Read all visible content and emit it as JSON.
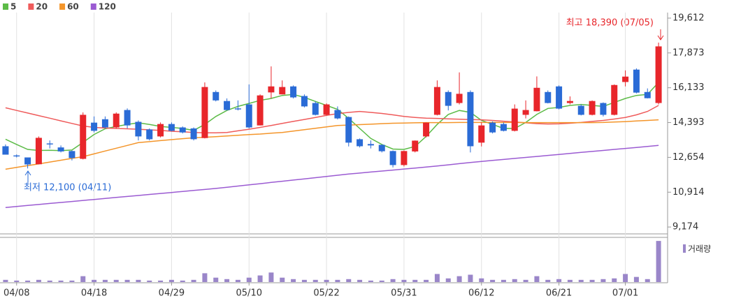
{
  "chart_data": {
    "type": "candlestick",
    "categories": [
      null,
      "04/08",
      null,
      null,
      null,
      null,
      null,
      null,
      "04/18",
      null,
      null,
      null,
      null,
      null,
      null,
      "04/29",
      null,
      null,
      null,
      null,
      null,
      null,
      "05/10",
      null,
      null,
      null,
      null,
      null,
      null,
      "05/22",
      null,
      null,
      null,
      null,
      null,
      null,
      "05/31",
      null,
      null,
      null,
      null,
      null,
      null,
      "06/12",
      null,
      null,
      null,
      null,
      null,
      null,
      "06/21",
      null,
      null,
      null,
      null,
      null,
      "07/01",
      null,
      null,
      null
    ],
    "open": [
      13210,
      12750,
      12650,
      12310,
      13350,
      13150,
      12970,
      12580,
      14390,
      14560,
      14150,
      15020,
      14430,
      14050,
      13700,
      14320,
      14150,
      14100,
      13620,
      15920,
      15470,
      15100,
      15300,
      14250,
      15900,
      15800,
      16200,
      15720,
      15370,
      14780,
      15020,
      14670,
      13560,
      13320,
      13280,
      12970,
      12270,
      12950,
      13700,
      14780,
      15920,
      15370,
      15920,
      13390,
      14390,
      14320,
      13980,
      14780,
      14960,
      15920,
      16200,
      15370,
      15230,
      14780,
      15370,
      14780,
      16420,
      17040,
      15920,
      15370
    ],
    "high": [
      13300,
      12800,
      12650,
      13700,
      13500,
      13250,
      13000,
      14900,
      14700,
      14700,
      14900,
      15100,
      14500,
      14100,
      14400,
      14400,
      14200,
      14150,
      16400,
      16000,
      15600,
      15500,
      16300,
      15800,
      17200,
      16500,
      16250,
      15800,
      15450,
      15350,
      15200,
      14700,
      13600,
      13500,
      13300,
      13000,
      13000,
      13500,
      14400,
      16500,
      16000,
      16900,
      16000,
      14400,
      14450,
      14400,
      15300,
      15500,
      16700,
      16000,
      16250,
      15700,
      15300,
      15500,
      15400,
      16300,
      17000,
      17100,
      16100,
      18390
    ],
    "low": [
      12790,
      12650,
      12100,
      12300,
      13100,
      12900,
      12500,
      12550,
      13900,
      14100,
      14100,
      14100,
      13500,
      13500,
      13650,
      13950,
      13850,
      13500,
      13600,
      15450,
      15000,
      15000,
      14100,
      14250,
      15600,
      15800,
      15600,
      15150,
      14750,
      14750,
      14550,
      13200,
      13150,
      13100,
      12900,
      12150,
      12200,
      12900,
      13650,
      14750,
      15000,
      15300,
      12900,
      13200,
      13850,
      13950,
      13950,
      14600,
      14950,
      15350,
      15050,
      15300,
      14750,
      14750,
      14700,
      14750,
      16200,
      15850,
      15600,
      15300
    ],
    "close": [
      12790,
      12700,
      12300,
      13630,
      13300,
      12950,
      12620,
      14780,
      13980,
      14150,
      14840,
      14250,
      13700,
      13560,
      14320,
      13980,
      13900,
      13560,
      16170,
      15500,
      15020,
      15050,
      14150,
      15750,
      16200,
      16170,
      15650,
      15200,
      14780,
      15300,
      14600,
      13390,
      13210,
      13250,
      12960,
      12270,
      12970,
      13490,
      14390,
      16170,
      15230,
      15830,
      13210,
      14250,
      13900,
      13980,
      15090,
      15020,
      16130,
      15370,
      15090,
      15470,
      14780,
      15470,
      14780,
      16270,
      16690,
      15890,
      15610,
      18200
    ],
    "up_color": "#e8262b",
    "down_color": "#2a6bd6",
    "ylim": [
      8830,
      19890
    ],
    "yticks": [
      {
        "value": 19612,
        "label": "19,612"
      },
      {
        "value": 17873,
        "label": "17,873"
      },
      {
        "value": 16133,
        "label": "16,133"
      },
      {
        "value": 14393,
        "label": "14,393"
      },
      {
        "value": 12654,
        "label": "12,654"
      },
      {
        "value": 10914,
        "label": "10,914"
      },
      {
        "value": 9174,
        "label": "9,174"
      }
    ],
    "grid": true,
    "ma_series": [
      {
        "name": "5",
        "color": "#5cbb47",
        "values": [
          13560,
          13300,
          13050,
          13000,
          13010,
          12990,
          13020,
          13400,
          13800,
          14080,
          14200,
          14300,
          14380,
          14300,
          14200,
          14150,
          14100,
          14000,
          14300,
          14700,
          15000,
          15200,
          15350,
          15500,
          15600,
          15750,
          15800,
          15650,
          15450,
          15250,
          15050,
          14600,
          14100,
          13600,
          13300,
          13070,
          13050,
          13200,
          13700,
          14300,
          14800,
          15000,
          14900,
          14500,
          14300,
          14100,
          14100,
          14400,
          14800,
          15100,
          15150,
          15250,
          15300,
          15250,
          15200,
          15400,
          15600,
          15750,
          15800,
          16400
        ]
      },
      {
        "name": "20",
        "color": "#ef5b5b",
        "values": [
          15130,
          15000,
          14870,
          14740,
          14610,
          14480,
          14350,
          14220,
          14150,
          14120,
          14100,
          14080,
          14060,
          14030,
          14000,
          13960,
          13930,
          13900,
          13880,
          13880,
          13900,
          13980,
          14060,
          14150,
          14250,
          14350,
          14450,
          14550,
          14650,
          14750,
          14840,
          14900,
          14950,
          14900,
          14850,
          14780,
          14700,
          14650,
          14610,
          14600,
          14580,
          14560,
          14540,
          14530,
          14500,
          14460,
          14420,
          14380,
          14340,
          14320,
          14330,
          14360,
          14400,
          14450,
          14500,
          14570,
          14650,
          14780,
          14950,
          15250
        ]
      },
      {
        "name": "60",
        "color": "#f4952a",
        "values": [
          12060,
          12150,
          12240,
          12330,
          12420,
          12510,
          12600,
          12690,
          12830,
          12970,
          13110,
          13250,
          13390,
          13440,
          13490,
          13540,
          13590,
          13630,
          13660,
          13690,
          13720,
          13760,
          13790,
          13820,
          13860,
          13900,
          13970,
          14040,
          14110,
          14180,
          14250,
          14270,
          14290,
          14310,
          14340,
          14360,
          14370,
          14380,
          14390,
          14390,
          14390,
          14400,
          14400,
          14400,
          14400,
          14400,
          14400,
          14390,
          14390,
          14390,
          14390,
          14390,
          14390,
          14390,
          14400,
          14420,
          14440,
          14470,
          14500,
          14530
        ]
      },
      {
        "name": "120",
        "color": "#9b5bd2",
        "values": [
          10150,
          10200,
          10250,
          10300,
          10350,
          10400,
          10450,
          10500,
          10550,
          10600,
          10650,
          10700,
          10750,
          10800,
          10850,
          10900,
          10950,
          11000,
          11050,
          11100,
          11160,
          11220,
          11280,
          11340,
          11400,
          11460,
          11520,
          11580,
          11640,
          11700,
          11760,
          11820,
          11870,
          11920,
          11970,
          12020,
          12070,
          12120,
          12170,
          12220,
          12280,
          12340,
          12400,
          12450,
          12500,
          12550,
          12600,
          12650,
          12700,
          12750,
          12800,
          12850,
          12900,
          12950,
          13000,
          13050,
          13100,
          13150,
          13200,
          13250
        ]
      }
    ],
    "volume": {
      "name": "거래량",
      "color": "#9a86c9",
      "values": [
        3,
        2,
        2,
        3,
        2,
        2,
        2,
        8,
        3,
        3,
        3,
        3,
        3,
        2,
        2,
        3,
        2,
        3,
        12,
        6,
        4,
        3,
        6,
        9,
        13,
        6,
        4,
        3,
        3,
        3,
        3,
        4,
        3,
        2,
        2,
        4,
        3,
        3,
        3,
        11,
        5,
        8,
        10,
        5,
        3,
        3,
        4,
        3,
        8,
        3,
        4,
        3,
        3,
        3,
        4,
        5,
        11,
        7,
        4,
        56
      ]
    },
    "volume_lim": [
      0,
      58
    ],
    "annotations": [
      "최고 18,390 (07/05)",
      "최저 12,100 (04/11)"
    ]
  }
}
